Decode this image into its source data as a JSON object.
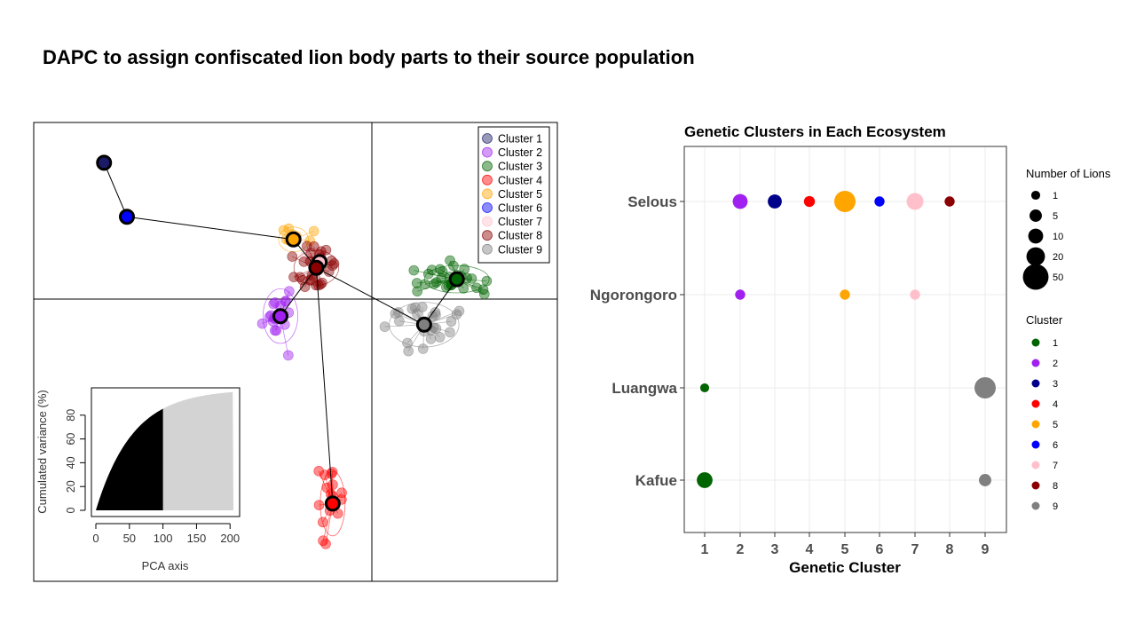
{
  "slide": {
    "title": "DAPC to assign confiscated lion body parts to their source population"
  },
  "chart_data": [
    {
      "type": "scatter",
      "title": "",
      "legend_placement": "top-right",
      "legend": [
        "Cluster 1",
        "Cluster 2",
        "Cluster 3",
        "Cluster 4",
        "Cluster 5",
        "Cluster 6",
        "Cluster 7",
        "Cluster 8",
        "Cluster 9"
      ],
      "cluster_colors": [
        "#1a1a66",
        "#a020f0",
        "#006400",
        "#ff0000",
        "#ffa500",
        "#0000ff",
        "#ffc0cb",
        "#8b0000",
        "#808080"
      ],
      "x": [
        -0.82,
        -0.28,
        0.26,
        -0.12,
        -0.24,
        -0.75,
        -0.16,
        -0.17,
        0.16
      ],
      "y": [
        0.48,
        -0.06,
        0.07,
        -0.72,
        0.21,
        0.29,
        0.13,
        0.11,
        -0.09
      ],
      "inset": {
        "type": "area",
        "xlabel": "PCA axis",
        "ylabel": "Cumulated variance (%)",
        "x_ticks": [
          "0",
          "50",
          "100",
          "150",
          "200"
        ],
        "y_ticks": [
          "0",
          "20",
          "40",
          "60",
          "80"
        ],
        "retained_axes": 100,
        "total_axes": 205,
        "xlim": [
          0,
          205
        ],
        "ylim": [
          0,
          100
        ]
      }
    },
    {
      "type": "scatter",
      "title": "Genetic Clusters in Each Ecosystem",
      "xlabel": "Genetic Cluster",
      "ylabel": "",
      "x_ticks": [
        "1",
        "2",
        "3",
        "4",
        "5",
        "6",
        "7",
        "8",
        "9"
      ],
      "y_categories": [
        "Selous",
        "Ngorongoro",
        "Luangwa",
        "Kafue"
      ],
      "grid": true,
      "size_legend": {
        "title": "Number of Lions",
        "values": [
          "1",
          "5",
          "10",
          "20",
          "50"
        ]
      },
      "color_legend": {
        "title": "Cluster",
        "labels": [
          "1",
          "2",
          "3",
          "4",
          "5",
          "6",
          "7",
          "8",
          "9"
        ],
        "colors": [
          "#006400",
          "#a020f0",
          "#00008b",
          "#ff0000",
          "#ffa500",
          "#0000ff",
          "#ffc0cb",
          "#8b0000",
          "#808080"
        ]
      },
      "points": [
        {
          "ecosystem": "Selous",
          "cluster": 2,
          "count": 10
        },
        {
          "ecosystem": "Selous",
          "cluster": 3,
          "count": 8
        },
        {
          "ecosystem": "Selous",
          "cluster": 4,
          "count": 3
        },
        {
          "ecosystem": "Selous",
          "cluster": 5,
          "count": 30
        },
        {
          "ecosystem": "Selous",
          "cluster": 6,
          "count": 2
        },
        {
          "ecosystem": "Selous",
          "cluster": 7,
          "count": 15
        },
        {
          "ecosystem": "Selous",
          "cluster": 8,
          "count": 2
        },
        {
          "ecosystem": "Ngorongoro",
          "cluster": 2,
          "count": 2
        },
        {
          "ecosystem": "Ngorongoro",
          "cluster": 5,
          "count": 2
        },
        {
          "ecosystem": "Ngorongoro",
          "cluster": 7,
          "count": 2
        },
        {
          "ecosystem": "Luangwa",
          "cluster": 1,
          "count": 1
        },
        {
          "ecosystem": "Luangwa",
          "cluster": 9,
          "count": 30
        },
        {
          "ecosystem": "Kafue",
          "cluster": 1,
          "count": 12
        },
        {
          "ecosystem": "Kafue",
          "cluster": 9,
          "count": 5
        }
      ]
    }
  ]
}
